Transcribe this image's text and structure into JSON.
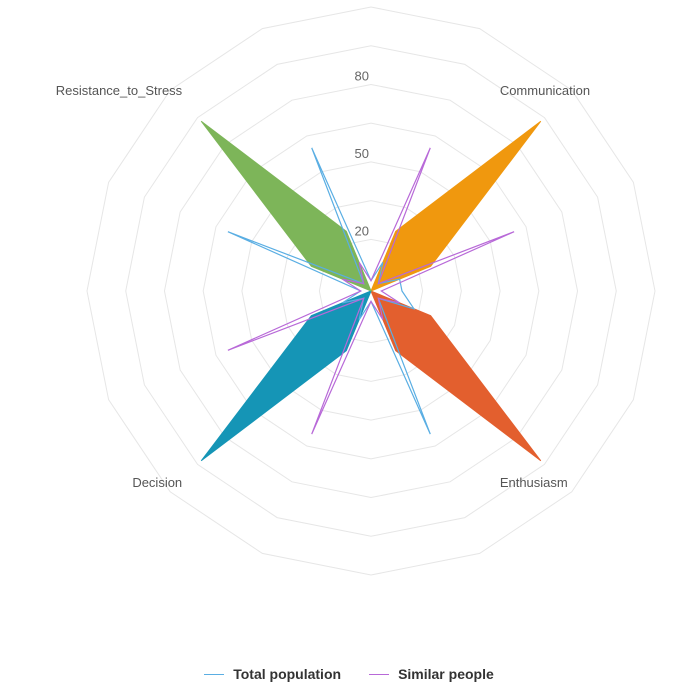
{
  "chart_data": {
    "type": "radar",
    "axes": [
      "Communication",
      "",
      "",
      "",
      "Enthusiasm",
      "",
      "",
      "",
      "Decision",
      "",
      "",
      "",
      "Resistance_to_Stress",
      "",
      "",
      ""
    ],
    "ticks": [
      20,
      50,
      80
    ],
    "rmax": 110,
    "sectors": [
      {
        "name": "Communication",
        "color": "#f0980e",
        "peak": 93,
        "side": 25
      },
      {
        "name": "Enthusiasm",
        "color": "#e35f2e",
        "peak": 93,
        "side": 25
      },
      {
        "name": "Decision",
        "color": "#1595b6",
        "peak": 93,
        "side": 25
      },
      {
        "name": "Resistance_to_Stress",
        "color": "#7db559",
        "peak": 93,
        "side": 25
      }
    ],
    "series": [
      {
        "name": "Total population",
        "color": "#5aaee3",
        "values": [
          4,
          12,
          12,
          18,
          4,
          60,
          4,
          12,
          4,
          12,
          4,
          60,
          4,
          60,
          4,
          12
        ]
      },
      {
        "name": "Similar people",
        "color": "#b869d8",
        "values": [
          4,
          60,
          4,
          12,
          4,
          12,
          4,
          60,
          4,
          60,
          4,
          12,
          4,
          12,
          4,
          60
        ]
      }
    ]
  },
  "legend": {
    "items": [
      {
        "label": "Total population",
        "color": "#5aaee3"
      },
      {
        "label": "Similar people",
        "color": "#b869d8"
      }
    ]
  }
}
